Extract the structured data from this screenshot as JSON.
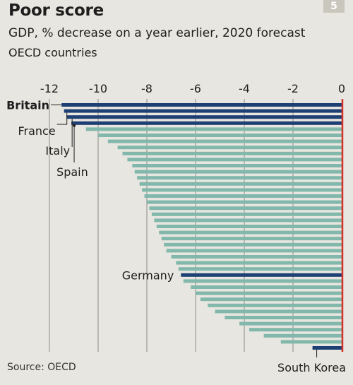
{
  "header": {
    "title": "Poor score",
    "subtitle": "GDP, % decrease on a year earlier, 2020 forecast",
    "subtitle2": "OECD countries",
    "chart_number": "5"
  },
  "footer": {
    "source": "Source: OECD"
  },
  "colors": {
    "highlight": "#1e3f73",
    "bar": "#82b8ab",
    "zero_line": "#d6302a",
    "grid": "#8a8a8a",
    "background": "#e8e6e0"
  },
  "chart_data": {
    "type": "bar",
    "orientation": "horizontal",
    "title": "Poor score",
    "subtitle": "GDP, % decrease on a year earlier, 2020 forecast",
    "xlim": [
      -12.5,
      0
    ],
    "xticks": [
      -12,
      -10,
      -8,
      -6,
      -4,
      -2,
      0
    ],
    "grid": true,
    "highlighted": [
      {
        "name": "Britain",
        "value": -11.5
      },
      {
        "name": "France",
        "value": -11.4
      },
      {
        "name": "Italy",
        "value": -11.3
      },
      {
        "name": "Spain",
        "value": -11.1
      },
      {
        "name": "Germany",
        "value": -6.6
      },
      {
        "name": "South Korea",
        "value": -1.2
      }
    ],
    "values": [
      -11.5,
      -11.4,
      -11.3,
      -11.1,
      -10.5,
      -10.0,
      -9.6,
      -9.2,
      -9.0,
      -8.8,
      -8.6,
      -8.5,
      -8.4,
      -8.3,
      -8.2,
      -8.1,
      -8.0,
      -7.9,
      -7.8,
      -7.7,
      -7.6,
      -7.5,
      -7.4,
      -7.3,
      -7.2,
      -7.0,
      -6.8,
      -6.7,
      -6.6,
      -6.5,
      -6.2,
      -6.0,
      -5.8,
      -5.5,
      -5.2,
      -4.8,
      -4.2,
      -3.8,
      -3.2,
      -2.5,
      -1.2
    ]
  }
}
